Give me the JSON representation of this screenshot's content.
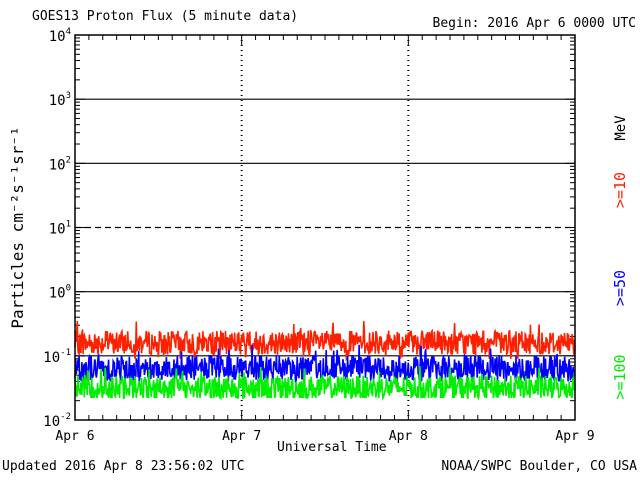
{
  "chart_data": {
    "type": "line",
    "title": "GOES13 Proton Flux (5 minute data)",
    "begin": "Begin: 2016 Apr 6 0000 UTC",
    "xlabel": "Universal Time",
    "ylabel": "Particles cm⁻²s⁻¹sr⁻¹",
    "y_scale": "log",
    "ylim": [
      0.01,
      10000
    ],
    "y_ticks": [
      {
        "base": "10",
        "exp": "4"
      },
      {
        "base": "10",
        "exp": "3"
      },
      {
        "base": "10",
        "exp": "2"
      },
      {
        "base": "10",
        "exp": "1"
      },
      {
        "base": "10",
        "exp": "0"
      },
      {
        "base": "10",
        "exp": "-1"
      },
      {
        "base": "10",
        "exp": "-2"
      }
    ],
    "x_ticks": [
      "Apr 6",
      "Apr 7",
      "Apr 8",
      "Apr 9"
    ],
    "xlim_days": [
      0,
      3
    ],
    "threshold_lines": [
      {
        "value": 1000,
        "style": "solid"
      },
      {
        "value": 100,
        "style": "solid"
      },
      {
        "value": 10,
        "style": "dashed"
      },
      {
        "value": 1,
        "style": "solid"
      },
      {
        "value": 0.1,
        "style": "solid"
      }
    ],
    "unit_label": "MeV",
    "series": [
      {
        "name": ">=10",
        "color": "#ff2000",
        "mean": 0.16,
        "min": 0.09,
        "max": 0.35
      },
      {
        "name": ">=50",
        "color": "#0000ff",
        "mean": 0.065,
        "min": 0.04,
        "max": 0.15
      },
      {
        "name": ">=100",
        "color": "#00ee00",
        "mean": 0.032,
        "min": 0.022,
        "max": 0.07
      }
    ]
  },
  "footer": {
    "updated": "Updated 2016 Apr  8 23:56:02 UTC",
    "credit": "NOAA/SWPC Boulder, CO USA"
  }
}
